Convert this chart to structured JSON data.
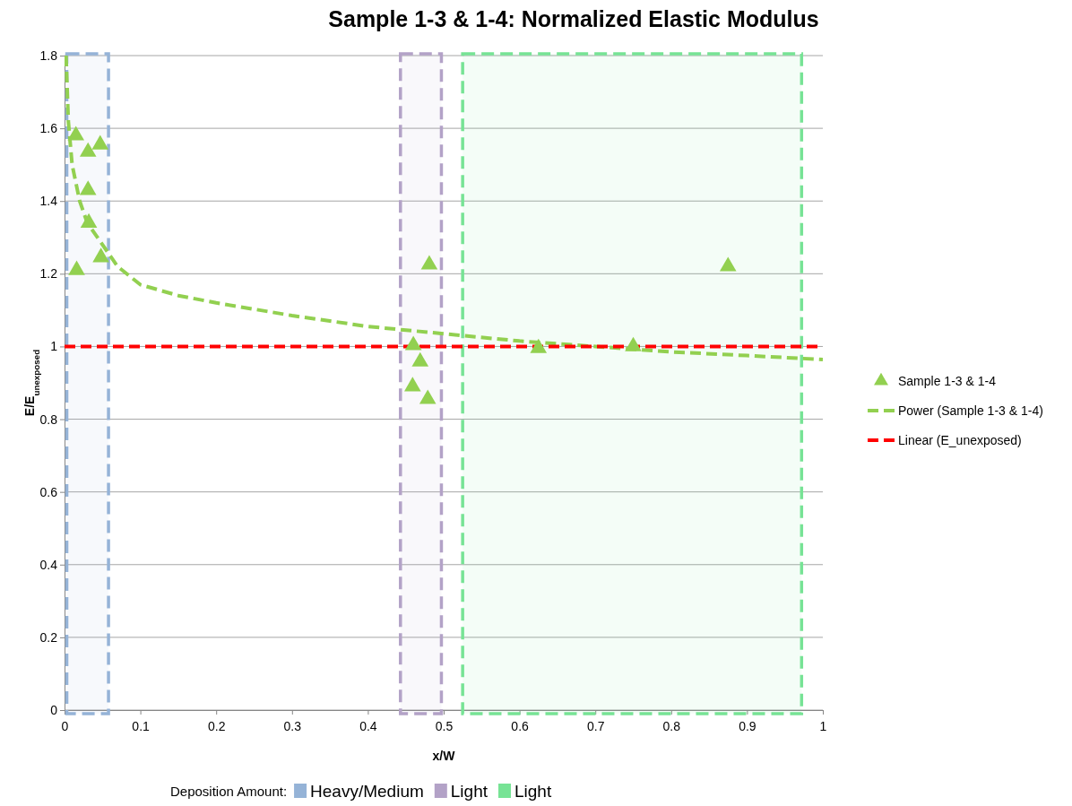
{
  "chart_data": {
    "type": "scatter",
    "title": "Sample 1-3 & 1-4: Normalized Elastic Modulus",
    "xlabel": "x/W",
    "ylabel": "E/E$_{unexposed}$",
    "xlim": [
      0,
      1
    ],
    "xticks": [
      0,
      0.1,
      0.2,
      0.3,
      0.4,
      0.5,
      0.6,
      0.7,
      0.8,
      0.9,
      1
    ],
    "ylim": [
      0,
      1.8
    ],
    "yticks": [
      0,
      0.2,
      0.4,
      0.6,
      0.8,
      1,
      1.2,
      1.4,
      1.6,
      1.8
    ],
    "grid": "y",
    "legend": "right",
    "legend_title": "Deposition Amount:",
    "series": [
      {
        "name": "Sample 1-3 & 1-4",
        "marker": "triangle",
        "color": "#92d050",
        "x": [
          0.016,
          0.015,
          0.031,
          0.031,
          0.032,
          0.047,
          0.048,
          0.46,
          0.469,
          0.459,
          0.479,
          0.481,
          0.625,
          0.75,
          0.875
        ],
        "values": [
          1.21,
          1.58,
          1.535,
          1.43,
          1.34,
          1.555,
          1.245,
          1.003,
          0.958,
          0.89,
          0.855,
          1.225,
          0.995,
          1.0,
          1.22
        ]
      },
      {
        "name": "Power (Sample 1-3 & 1-4)",
        "type": "line",
        "line_style": "dashed",
        "color": "#92d050",
        "x": [
          0.002,
          0.005,
          0.01,
          0.02,
          0.03,
          0.05,
          0.07,
          0.1,
          0.15,
          0.2,
          0.3,
          0.4,
          0.5,
          0.6,
          0.7,
          0.8,
          0.9,
          1.0
        ],
        "values": [
          1.8,
          1.62,
          1.5,
          1.4,
          1.34,
          1.28,
          1.22,
          1.17,
          1.14,
          1.12,
          1.085,
          1.055,
          1.035,
          1.015,
          1.0,
          0.985,
          0.975,
          0.964
        ]
      },
      {
        "name": "Linear (E_unexposed)",
        "type": "line",
        "line_style": "dashed",
        "color": "#ff0000",
        "x": [
          0,
          1
        ],
        "values": [
          1,
          1
        ]
      }
    ],
    "bands": [
      {
        "axis": "x",
        "from": 0.003,
        "to": 0.058,
        "label": "Heavy/Medium",
        "color": "#95b3d7"
      },
      {
        "axis": "x",
        "from": 0.443,
        "to": 0.497,
        "label": "Light",
        "color": "#b3a2c7"
      },
      {
        "axis": "x",
        "from": 0.525,
        "to": 0.972,
        "label": "Light",
        "color": "#77e395"
      }
    ]
  }
}
